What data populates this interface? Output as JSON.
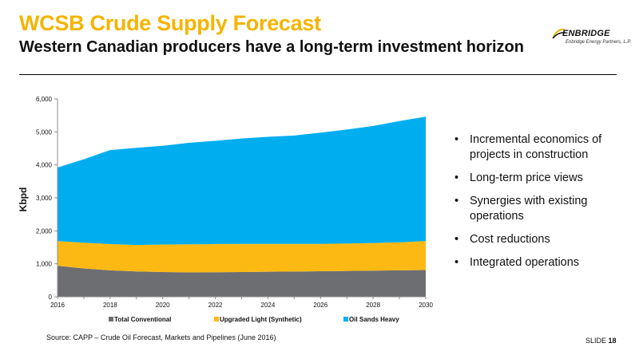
{
  "header": {
    "title": "WCSB Crude Supply Forecast",
    "subtitle": "Western Canadian producers have a long-term investment horizon",
    "logo_name": "ENBRIDGE",
    "logo_sub": "Enbridge Energy Partners, L.P."
  },
  "bullets": [
    "Incremental economics of projects in construction",
    "Long-term price views",
    "Synergies with existing operations",
    "Cost reductions",
    "Integrated operations"
  ],
  "footer": {
    "source": "Source: CAPP – Crude Oil Forecast, Markets and Pipelines  (June 2016)",
    "slide_label": "SLIDE",
    "slide_number": "18"
  },
  "colors": {
    "title": "#f5b400",
    "conventional": "#6d6e71",
    "upgraded": "#fdb913",
    "oilsands": "#00aeef"
  },
  "chart_data": {
    "type": "area",
    "stacked": true,
    "x": [
      2016,
      2017,
      2018,
      2019,
      2020,
      2021,
      2022,
      2023,
      2024,
      2025,
      2026,
      2027,
      2028,
      2029,
      2030
    ],
    "x_ticks": [
      "2016",
      "2018",
      "2020",
      "2022",
      "2024",
      "2026",
      "2028",
      "2030"
    ],
    "y_ticks": [
      "0",
      "1,000",
      "2,000",
      "3,000",
      "4,000",
      "5,000",
      "6,000"
    ],
    "ylabel": "Kbpd",
    "xlabel": "",
    "ylim": [
      0,
      6000
    ],
    "grid": false,
    "legend_position": "bottom",
    "series": [
      {
        "name": "Total Conventional",
        "color": "#6d6e71",
        "values": [
          940,
          860,
          800,
          770,
          750,
          740,
          745,
          750,
          760,
          765,
          775,
          785,
          790,
          800,
          810
        ]
      },
      {
        "name": "Upgraded Light (Synthetic)",
        "color": "#fdb913",
        "values": [
          750,
          780,
          800,
          800,
          835,
          850,
          855,
          855,
          845,
          840,
          830,
          830,
          840,
          850,
          880
        ]
      },
      {
        "name": "Oil Sands Heavy",
        "color": "#00aeef",
        "values": [
          2230,
          2530,
          2850,
          2950,
          2995,
          3080,
          3130,
          3195,
          3245,
          3285,
          3375,
          3455,
          3550,
          3680,
          3770
        ]
      }
    ]
  }
}
